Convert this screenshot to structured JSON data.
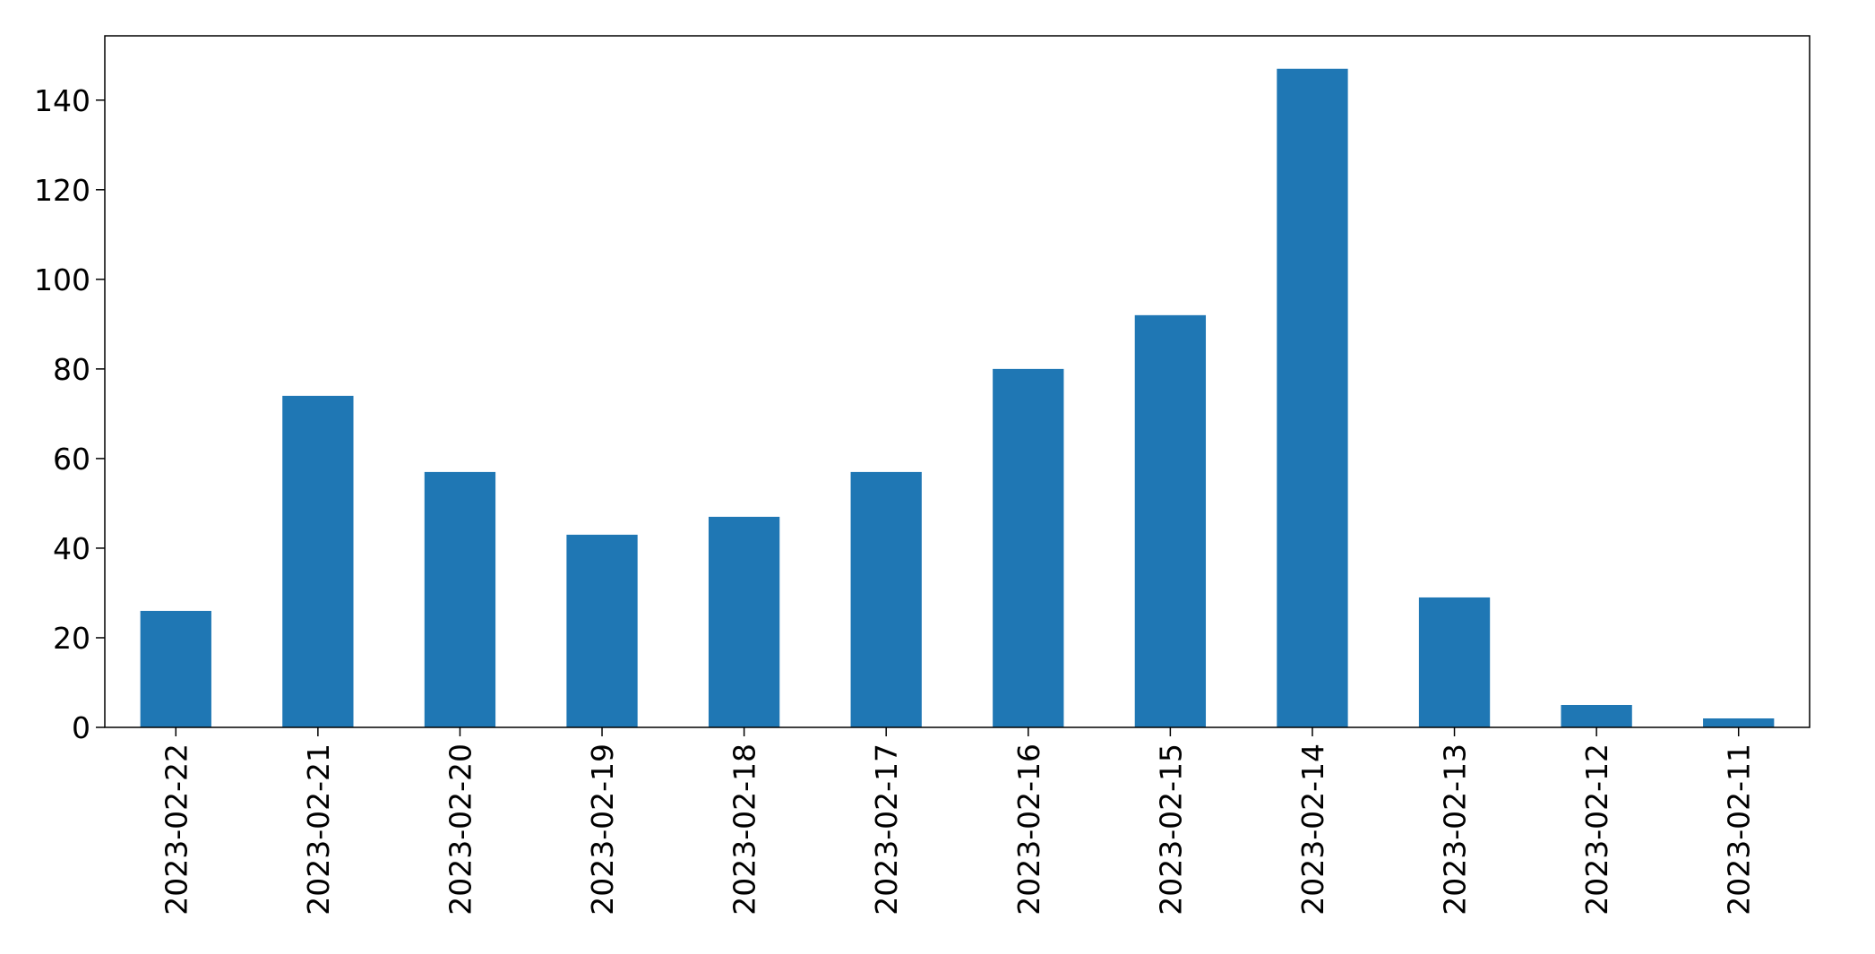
{
  "chart_data": {
    "type": "bar",
    "title": "",
    "xlabel": "",
    "ylabel": "",
    "categories": [
      "2023-02-22",
      "2023-02-21",
      "2023-02-20",
      "2023-02-19",
      "2023-02-18",
      "2023-02-17",
      "2023-02-16",
      "2023-02-15",
      "2023-02-14",
      "2023-02-13",
      "2023-02-12",
      "2023-02-11"
    ],
    "series": [
      {
        "values": [
          26,
          74,
          57,
          43,
          47,
          57,
          80,
          92,
          147,
          29,
          5,
          2
        ],
        "color": "#1f77b4"
      }
    ],
    "ylim": [
      0,
      154.35
    ],
    "yticks": [
      0,
      20,
      40,
      60,
      80,
      100,
      120,
      140
    ],
    "grid": false,
    "legend": "none"
  }
}
